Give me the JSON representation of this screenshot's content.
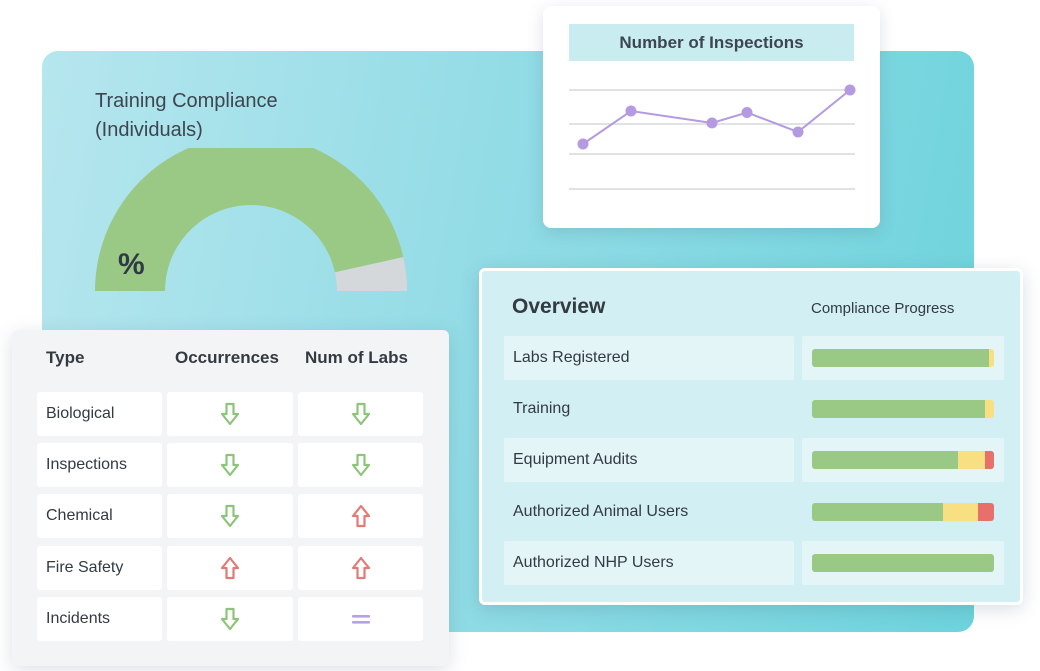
{
  "gauge": {
    "title_line1": "Training Compliance",
    "title_line2": "(Individuals)",
    "symbol": "%",
    "value_fraction": 0.93,
    "color_filled": "#9ac986",
    "color_remaining": "#d4d8da"
  },
  "inspections_chart": {
    "title": "Number of Inspections",
    "chart_data": {
      "type": "line",
      "title": "Number of Inspections",
      "x": [
        1,
        2,
        3,
        4,
        5,
        6
      ],
      "series": [
        {
          "values": [
            1.0,
            2.1,
            1.7,
            2.05,
            1.4,
            2.8
          ]
        }
      ],
      "ylim": [
        0,
        3
      ],
      "grid": true,
      "line_color": "#b49ae0"
    }
  },
  "table": {
    "headers": {
      "type": "Type",
      "occurrences": "Occurrences",
      "labs": "Num of Labs"
    },
    "rows": [
      {
        "type": "Biological",
        "occurrences": "down",
        "labs": "down"
      },
      {
        "type": "Inspections",
        "occurrences": "down",
        "labs": "down"
      },
      {
        "type": "Chemical",
        "occurrences": "down",
        "labs": "up"
      },
      {
        "type": "Fire Safety",
        "occurrences": "up",
        "labs": "up"
      },
      {
        "type": "Incidents",
        "occurrences": "down",
        "labs": "equal"
      }
    ],
    "icons": {
      "down": {
        "name": "arrow-down-icon",
        "color": "#8cc47a"
      },
      "up": {
        "name": "arrow-up-icon",
        "color": "#e27a76"
      },
      "equal": {
        "name": "equal-icon",
        "color": "#b8a0e6"
      }
    }
  },
  "overview": {
    "title": "Overview",
    "column_label": "Compliance Progress",
    "colors": {
      "green": "#9ac986",
      "yellow": "#f7df82",
      "red": "#e8706b"
    },
    "rows": [
      {
        "label": "Labs Registered",
        "green": 0.975,
        "yellow": 0.025,
        "red": 0
      },
      {
        "label": "Training",
        "green": 0.95,
        "yellow": 0.05,
        "red": 0
      },
      {
        "label": "Equipment Audits",
        "green": 0.8,
        "yellow": 0.15,
        "red": 0.05
      },
      {
        "label": "Authorized Animal Users",
        "green": 0.72,
        "yellow": 0.19,
        "red": 0.09
      },
      {
        "label": "Authorized NHP Users",
        "green": 1.0,
        "yellow": 0,
        "red": 0
      }
    ]
  }
}
